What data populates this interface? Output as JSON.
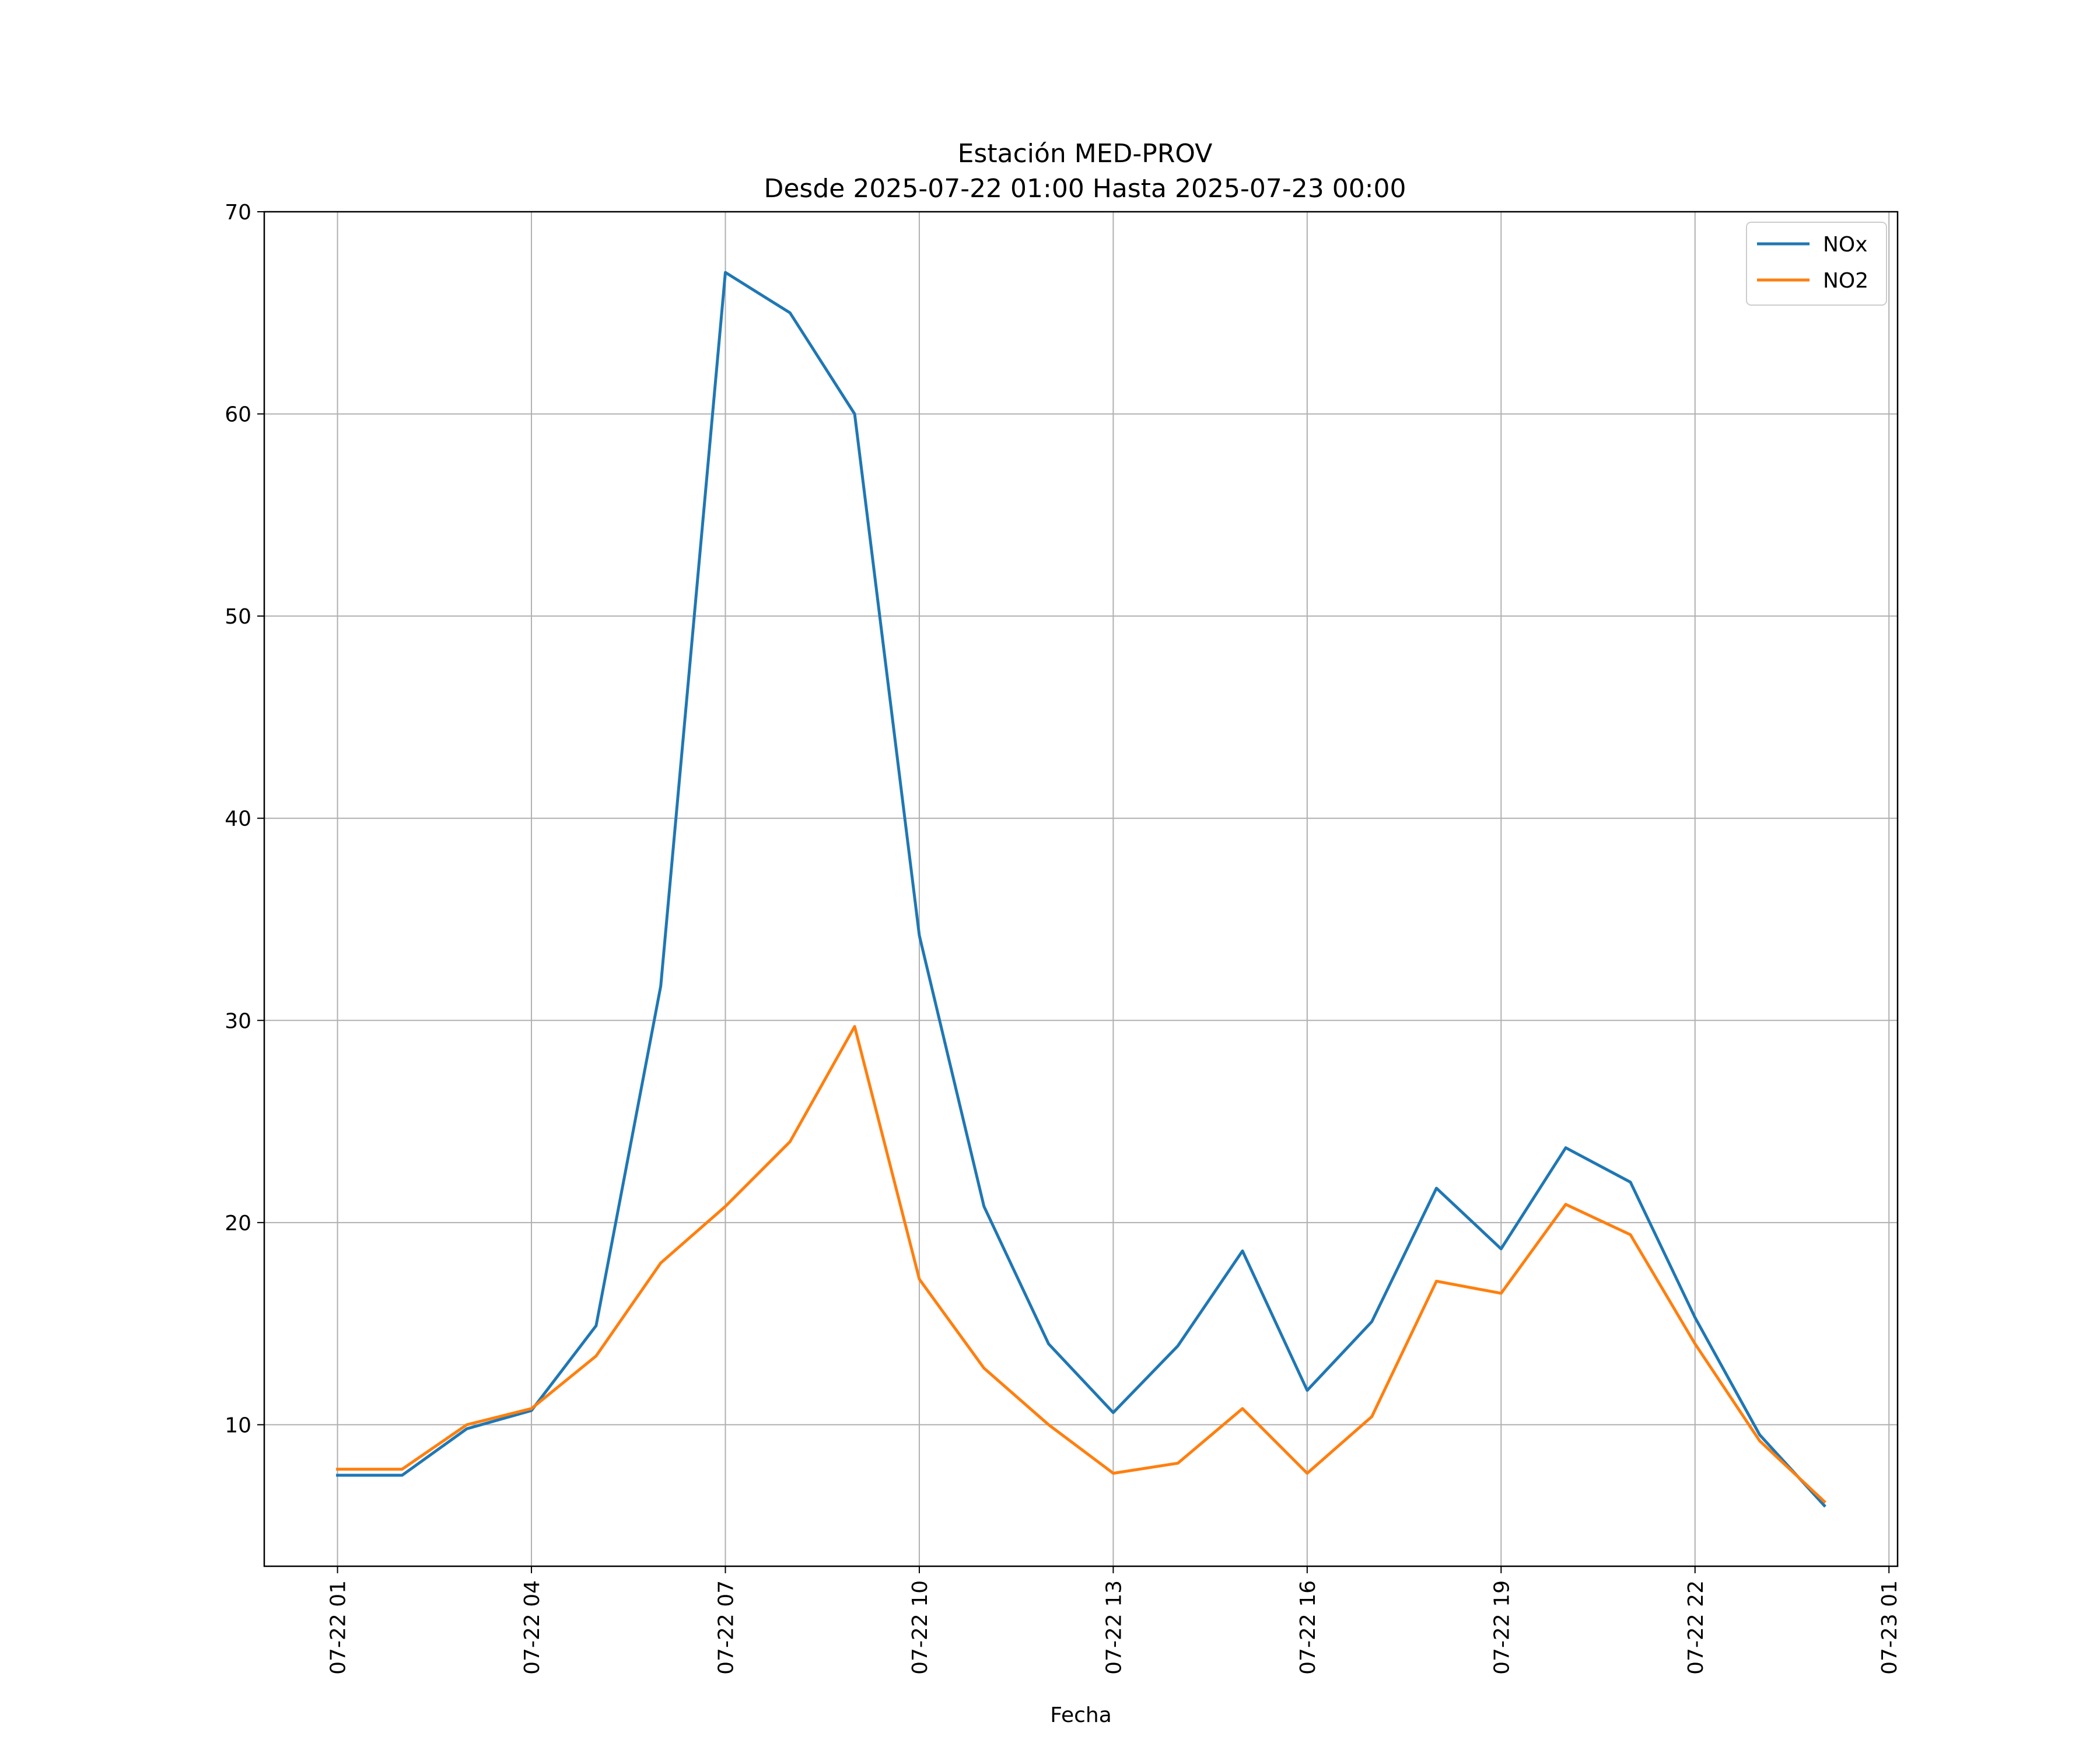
{
  "chart_data": {
    "type": "line",
    "title": "Estación MED-PROV",
    "subtitle": "Desde 2025-07-22 01:00 Hasta 2025-07-23 00:00",
    "xlabel": "Fecha",
    "ylabel": "",
    "x": [
      "2025-07-22 01:00",
      "2025-07-22 02:00",
      "2025-07-22 03:00",
      "2025-07-22 04:00",
      "2025-07-22 05:00",
      "2025-07-22 06:00",
      "2025-07-22 07:00",
      "2025-07-22 08:00",
      "2025-07-22 09:00",
      "2025-07-22 10:00",
      "2025-07-22 11:00",
      "2025-07-22 12:00",
      "2025-07-22 13:00",
      "2025-07-22 14:00",
      "2025-07-22 15:00",
      "2025-07-22 16:00",
      "2025-07-22 17:00",
      "2025-07-22 18:00",
      "2025-07-22 19:00",
      "2025-07-22 20:00",
      "2025-07-22 21:00",
      "2025-07-22 22:00",
      "2025-07-22 23:00",
      "2025-07-23 00:00"
    ],
    "xlim": [
      "2025-07-21 23:52",
      "2025-07-23 01:08"
    ],
    "xticks": [
      "2025-07-22 01:00",
      "2025-07-22 04:00",
      "2025-07-22 07:00",
      "2025-07-22 10:00",
      "2025-07-22 13:00",
      "2025-07-22 16:00",
      "2025-07-22 19:00",
      "2025-07-22 22:00",
      "2025-07-23 01:00"
    ],
    "xtick_labels": [
      "07-22 01",
      "07-22 04",
      "07-22 07",
      "07-22 10",
      "07-22 13",
      "07-22 16",
      "07-22 19",
      "07-22 22",
      "07-23 01"
    ],
    "ylim": [
      3,
      70
    ],
    "yticks": [
      10,
      20,
      30,
      40,
      50,
      60,
      70
    ],
    "ytick_labels": [
      "10",
      "20",
      "30",
      "40",
      "50",
      "60",
      "70"
    ],
    "grid": true,
    "legend_position": "top-right",
    "series": [
      {
        "name": "NOx",
        "color": "#1f77b4",
        "values": [
          7.5,
          7.5,
          9.8,
          10.7,
          14.9,
          31.7,
          67.0,
          65.0,
          60.0,
          34.2,
          20.8,
          14.0,
          10.6,
          13.9,
          18.6,
          11.7,
          15.1,
          21.7,
          18.7,
          23.7,
          22.0,
          15.3,
          9.5,
          6.0
        ]
      },
      {
        "name": "NO2",
        "color": "#ff7f0e",
        "values": [
          7.8,
          7.8,
          10.0,
          10.8,
          13.4,
          18.0,
          20.8,
          24.0,
          29.7,
          17.2,
          12.8,
          10.0,
          7.6,
          8.1,
          10.8,
          7.6,
          10.4,
          17.1,
          16.5,
          20.9,
          19.4,
          14.0,
          9.2,
          6.2
        ]
      }
    ]
  }
}
